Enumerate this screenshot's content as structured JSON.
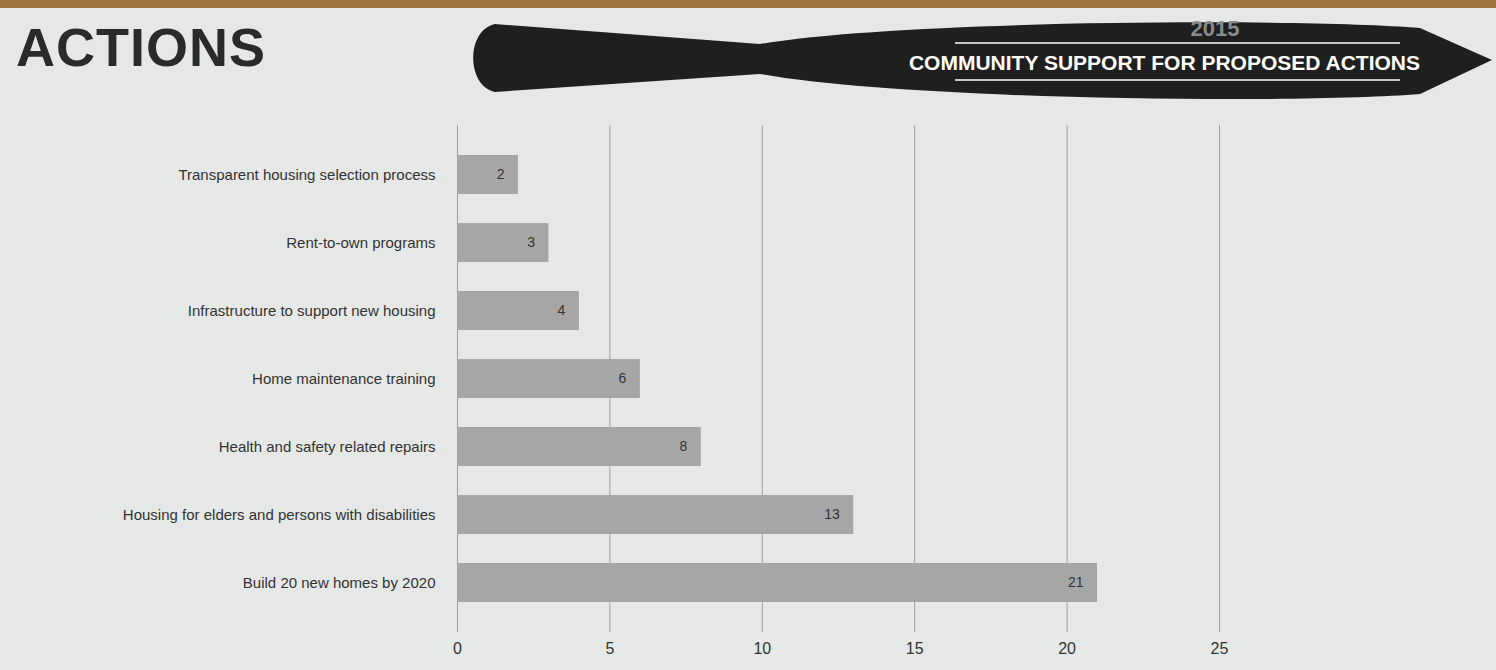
{
  "chart_data": {
    "type": "bar",
    "orientation": "horizontal",
    "title": "ACTIONS",
    "subtitle": "COMMUNITY SUPPORT FOR PROPOSED ACTIONS",
    "annotations": [
      "2015"
    ],
    "categories": [
      "Transparent housing selection process",
      "Rent-to-own programs",
      "Infrastructure to support new housing",
      "Home maintenance training",
      "Health and safety related repairs",
      "Housing for elders and persons with disabilities",
      "Build 20 new homes by 2020"
    ],
    "values": [
      2,
      3,
      4,
      6,
      8,
      13,
      21
    ],
    "color": "#a6a6a6",
    "xlim": [
      0,
      25
    ],
    "xticks": [
      0,
      5,
      10,
      15,
      20,
      25
    ],
    "grid": true,
    "data_labels": true
  }
}
